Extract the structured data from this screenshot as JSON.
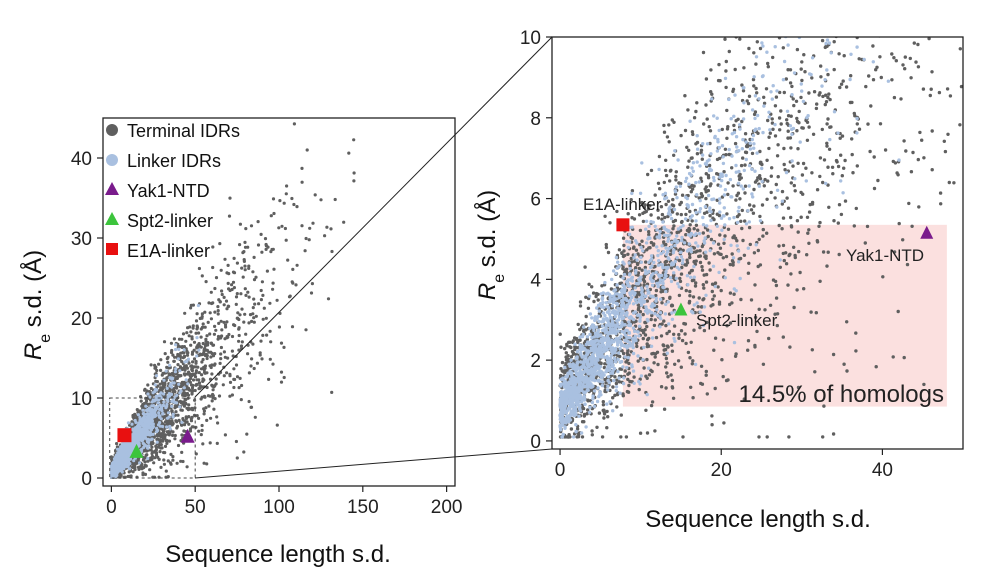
{
  "chart_data": [
    {
      "type": "scatter",
      "xlabel": "Sequence length s.d.",
      "ylabel_main": "R",
      "ylabel_sub": "e",
      "ylabel_rest": " s.d. (Å)",
      "xlim": [
        -5,
        205
      ],
      "ylim": [
        -1,
        45
      ],
      "xticks": [
        0,
        50,
        100,
        150,
        200
      ],
      "xtick_labels": [
        "0",
        "50",
        "100",
        "150",
        "200"
      ],
      "yticks": [
        0,
        10,
        20,
        30,
        40
      ],
      "ytick_labels": [
        "0",
        "10",
        "20",
        "30",
        "40"
      ],
      "legend": {
        "placement": "top-left",
        "entries": [
          {
            "label": "Terminal IDRs",
            "marker": "circle",
            "color": "#5f5f5f"
          },
          {
            "label": "Linker IDRs",
            "marker": "circle",
            "color": "#a9c0e0"
          },
          {
            "label": "Yak1-NTD",
            "marker": "triangle",
            "color": "#7a1b8c"
          },
          {
            "label": "Spt2-linker",
            "marker": "triangle",
            "color": "#3cc43c"
          },
          {
            "label": "E1A-linker",
            "marker": "square",
            "color": "#e81010"
          }
        ]
      },
      "series": [
        {
          "name": "Terminal IDRs",
          "points": "many (~3000) gray points along a diagonal trend"
        },
        {
          "name": "Linker IDRs",
          "points": "many (~1500) light-blue points concentrated near the origin"
        }
      ],
      "highlights": [
        {
          "name": "Yak1-NTD",
          "x": 45.5,
          "y": 5.2
        },
        {
          "name": "Spt2-linker",
          "x": 15,
          "y": 3.3
        },
        {
          "name": "E1A-linker",
          "x": 7.8,
          "y": 5.35
        }
      ],
      "inset_box": {
        "x": [
          -1,
          50
        ],
        "y": [
          0,
          10
        ]
      }
    },
    {
      "type": "scatter",
      "xlabel": "Sequence length s.d.",
      "ylabel_main": "R",
      "ylabel_sub": "e",
      "ylabel_rest": " s.d. (Å)",
      "xlim": [
        -1,
        50
      ],
      "ylim": [
        -0.2,
        10
      ],
      "xticks": [
        0,
        20,
        40
      ],
      "xtick_labels": [
        "0",
        "20",
        "40"
      ],
      "yticks": [
        0,
        2,
        4,
        6,
        8,
        10
      ],
      "ytick_labels": [
        "0",
        "2",
        "4",
        "6",
        "8",
        "10"
      ],
      "highlights": [
        {
          "name": "Yak1-NTD",
          "x": 45.5,
          "y": 5.15,
          "label": "Yak1-NTD"
        },
        {
          "name": "Spt2-linker",
          "x": 15,
          "y": 3.25,
          "label": "Spt2-linker"
        },
        {
          "name": "E1A-linker",
          "x": 7.8,
          "y": 5.35,
          "label": "E1A-linker"
        }
      ],
      "shaded_region": {
        "x": [
          7.8,
          48
        ],
        "y": [
          0.85,
          5.35
        ],
        "color": "#fbe0df",
        "label": "14.5% of homologs"
      }
    }
  ]
}
